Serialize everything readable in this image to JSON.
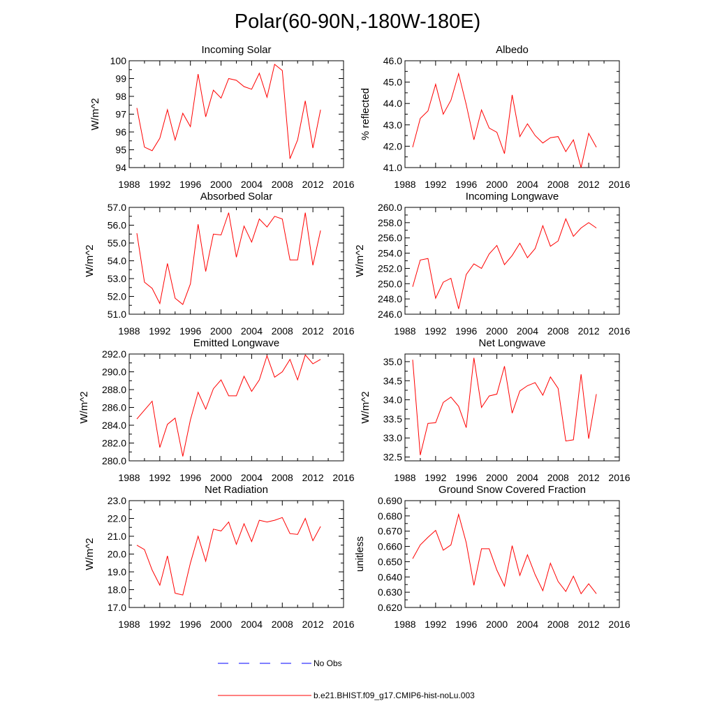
{
  "figure": {
    "title": "Polar(60-90N,-180W-180E)"
  },
  "legend": {
    "items": [
      {
        "label": "No Obs",
        "color": "#0000ff",
        "style": "dashed"
      },
      {
        "label": "b.e21.BHIST.f09_g17.CMIP6-hist-noLu.003",
        "color": "#ff0000",
        "style": "solid"
      }
    ]
  },
  "chart_data": [
    {
      "type": "line",
      "title": "Incoming Solar",
      "ylabel": "W/m^2",
      "xlim": [
        1988,
        2016
      ],
      "ylim": [
        94,
        100
      ],
      "xticks": [
        1988,
        1992,
        1996,
        2000,
        2004,
        2008,
        2012,
        2016
      ],
      "yticks": [
        "94",
        "95",
        "96",
        "97",
        "98",
        "99",
        "100"
      ],
      "x": [
        1989,
        1990,
        1991,
        1992,
        1993,
        1994,
        1995,
        1996,
        1997,
        1998,
        1999,
        2000,
        2001,
        2002,
        2003,
        2004,
        2005,
        2006,
        2007,
        2008,
        2009,
        2010,
        2011,
        2012,
        2013
      ],
      "series": [
        {
          "color": "#ff0000",
          "values": [
            97.35,
            95.15,
            94.95,
            95.65,
            97.25,
            95.55,
            97.05,
            96.3,
            99.25,
            96.85,
            98.35,
            97.9,
            99.0,
            98.9,
            98.55,
            98.4,
            99.3,
            97.95,
            99.8,
            99.45,
            94.5,
            95.55,
            97.75,
            95.1,
            97.25
          ]
        }
      ]
    },
    {
      "type": "line",
      "title": "Albedo",
      "ylabel": "% reflected",
      "xlim": [
        1988,
        2016
      ],
      "ylim": [
        41.0,
        46.0
      ],
      "xticks": [
        1988,
        1992,
        1996,
        2000,
        2004,
        2008,
        2012,
        2016
      ],
      "yticks": [
        "41.0",
        "42.0",
        "43.0",
        "44.0",
        "45.0",
        "46.0"
      ],
      "x": [
        1989,
        1990,
        1991,
        1992,
        1993,
        1994,
        1995,
        1996,
        1997,
        1998,
        1999,
        2000,
        2001,
        2002,
        2003,
        2004,
        2005,
        2006,
        2007,
        2008,
        2009,
        2010,
        2011,
        2012,
        2013
      ],
      "series": [
        {
          "color": "#ff0000",
          "values": [
            41.95,
            43.3,
            43.65,
            44.9,
            43.5,
            44.15,
            45.4,
            43.95,
            42.3,
            43.7,
            42.85,
            42.65,
            41.65,
            44.4,
            42.45,
            43.05,
            42.5,
            42.15,
            42.4,
            42.45,
            41.75,
            42.3,
            41.0,
            42.6,
            41.95
          ]
        }
      ]
    },
    {
      "type": "line",
      "title": "Absorbed Solar",
      "ylabel": "W/m^2",
      "xlim": [
        1988,
        2016
      ],
      "ylim": [
        51.0,
        57.0
      ],
      "xticks": [
        1988,
        1992,
        1996,
        2000,
        2004,
        2008,
        2012,
        2016
      ],
      "yticks": [
        "51.0",
        "52.0",
        "53.0",
        "54.0",
        "55.0",
        "56.0",
        "57.0"
      ],
      "x": [
        1989,
        1990,
        1991,
        1992,
        1993,
        1994,
        1995,
        1996,
        1997,
        1998,
        1999,
        2000,
        2001,
        2002,
        2003,
        2004,
        2005,
        2006,
        2007,
        2008,
        2009,
        2010,
        2011,
        2012,
        2013
      ],
      "series": [
        {
          "color": "#ff0000",
          "values": [
            55.55,
            52.8,
            52.45,
            51.6,
            53.85,
            51.9,
            51.55,
            52.7,
            56.05,
            53.4,
            55.5,
            55.45,
            56.7,
            54.2,
            55.95,
            55.05,
            56.35,
            55.9,
            56.5,
            56.35,
            54.05,
            54.05,
            56.7,
            53.75,
            55.7
          ]
        }
      ]
    },
    {
      "type": "line",
      "title": "Incoming Longwave",
      "ylabel": "W/m^2",
      "xlim": [
        1988,
        2016
      ],
      "ylim": [
        246.0,
        260.0
      ],
      "xticks": [
        1988,
        1992,
        1996,
        2000,
        2004,
        2008,
        2012,
        2016
      ],
      "yticks": [
        "246.0",
        "248.0",
        "250.0",
        "252.0",
        "254.0",
        "256.0",
        "258.0",
        "260.0"
      ],
      "x": [
        1989,
        1990,
        1991,
        1992,
        1993,
        1994,
        1995,
        1996,
        1997,
        1998,
        1999,
        2000,
        2001,
        2002,
        2003,
        2004,
        2005,
        2006,
        2007,
        2008,
        2009,
        2010,
        2011,
        2012,
        2013
      ],
      "series": [
        {
          "color": "#ff0000",
          "values": [
            249.6,
            253.1,
            253.3,
            248.1,
            250.2,
            250.7,
            246.7,
            251.2,
            252.6,
            252.0,
            253.9,
            255.0,
            252.5,
            253.7,
            255.3,
            253.4,
            254.6,
            257.6,
            254.9,
            255.6,
            258.5,
            256.2,
            257.3,
            258.0,
            257.3
          ]
        }
      ]
    },
    {
      "type": "line",
      "title": "Emitted Longwave",
      "ylabel": "W/m^2",
      "xlim": [
        1988,
        2016
      ],
      "ylim": [
        280.0,
        292.0
      ],
      "xticks": [
        1988,
        1992,
        1996,
        2000,
        2004,
        2008,
        2012,
        2016
      ],
      "yticks": [
        "280.0",
        "282.0",
        "284.0",
        "286.0",
        "288.0",
        "290.0",
        "292.0"
      ],
      "x": [
        1989,
        1990,
        1991,
        1992,
        1993,
        1994,
        1995,
        1996,
        1997,
        1998,
        1999,
        2000,
        2001,
        2002,
        2003,
        2004,
        2005,
        2006,
        2007,
        2008,
        2009,
        2010,
        2011,
        2012,
        2013
      ],
      "series": [
        {
          "color": "#ff0000",
          "values": [
            284.7,
            285.7,
            286.7,
            281.5,
            284.1,
            284.8,
            280.5,
            284.6,
            287.7,
            285.8,
            288.1,
            289.1,
            287.3,
            287.3,
            289.5,
            287.8,
            289.1,
            291.8,
            289.4,
            290.0,
            291.4,
            289.1,
            291.9,
            290.9,
            291.4
          ]
        }
      ]
    },
    {
      "type": "line",
      "title": "Net Longwave",
      "ylabel": "W/m^2",
      "xlim": [
        1988,
        2016
      ],
      "ylim": [
        32.4,
        35.2
      ],
      "xticks": [
        1988,
        1992,
        1996,
        2000,
        2004,
        2008,
        2012,
        2016
      ],
      "yticks": [
        "32.5",
        "33.0",
        "33.5",
        "34.0",
        "34.5",
        "35.0"
      ],
      "x": [
        1989,
        1990,
        1991,
        1992,
        1993,
        1994,
        1995,
        1996,
        1997,
        1998,
        1999,
        2000,
        2001,
        2002,
        2003,
        2004,
        2005,
        2006,
        2007,
        2008,
        2009,
        2010,
        2011,
        2012,
        2013
      ],
      "series": [
        {
          "color": "#ff0000",
          "values": [
            35.05,
            32.55,
            33.38,
            33.4,
            33.93,
            34.07,
            33.83,
            33.27,
            35.1,
            33.8,
            34.1,
            34.15,
            34.88,
            33.65,
            34.23,
            34.37,
            34.45,
            34.12,
            34.6,
            34.3,
            32.92,
            32.95,
            34.67,
            32.98,
            34.15
          ]
        }
      ]
    },
    {
      "type": "line",
      "title": "Net Radiation",
      "ylabel": "W/m^2",
      "xlim": [
        1988,
        2016
      ],
      "ylim": [
        17.0,
        23.0
      ],
      "xticks": [
        1988,
        1992,
        1996,
        2000,
        2004,
        2008,
        2012,
        2016
      ],
      "yticks": [
        "17.0",
        "18.0",
        "19.0",
        "20.0",
        "21.0",
        "22.0",
        "23.0"
      ],
      "x": [
        1989,
        1990,
        1991,
        1992,
        1993,
        1994,
        1995,
        1996,
        1997,
        1998,
        1999,
        2000,
        2001,
        2002,
        2003,
        2004,
        2005,
        2006,
        2007,
        2008,
        2009,
        2010,
        2011,
        2012,
        2013
      ],
      "series": [
        {
          "color": "#ff0000",
          "values": [
            20.5,
            20.25,
            19.1,
            18.25,
            19.9,
            17.8,
            17.7,
            19.5,
            21.0,
            19.6,
            21.4,
            21.3,
            21.8,
            20.55,
            21.7,
            20.7,
            21.9,
            21.8,
            21.9,
            22.05,
            21.15,
            21.1,
            22.0,
            20.75,
            21.55
          ]
        }
      ]
    },
    {
      "type": "line",
      "title": "Ground Snow Covered Fraction",
      "ylabel": "unitless",
      "xlim": [
        1988,
        2016
      ],
      "ylim": [
        0.62,
        0.69
      ],
      "xticks": [
        1988,
        1992,
        1996,
        2000,
        2004,
        2008,
        2012,
        2016
      ],
      "yticks": [
        "0.620",
        "0.630",
        "0.640",
        "0.650",
        "0.660",
        "0.670",
        "0.680",
        "0.690"
      ],
      "x": [
        1989,
        1990,
        1991,
        1992,
        1993,
        1994,
        1995,
        1996,
        1997,
        1998,
        1999,
        2000,
        2001,
        2002,
        2003,
        2004,
        2005,
        2006,
        2007,
        2008,
        2009,
        2010,
        2011,
        2012,
        2013
      ],
      "series": [
        {
          "color": "#ff0000",
          "values": [
            0.652,
            0.661,
            0.666,
            0.6705,
            0.6575,
            0.661,
            0.681,
            0.6625,
            0.6345,
            0.6585,
            0.6585,
            0.6445,
            0.634,
            0.6605,
            0.641,
            0.6545,
            0.6415,
            0.631,
            0.649,
            0.637,
            0.6305,
            0.6405,
            0.629,
            0.6355,
            0.629
          ]
        }
      ]
    }
  ]
}
